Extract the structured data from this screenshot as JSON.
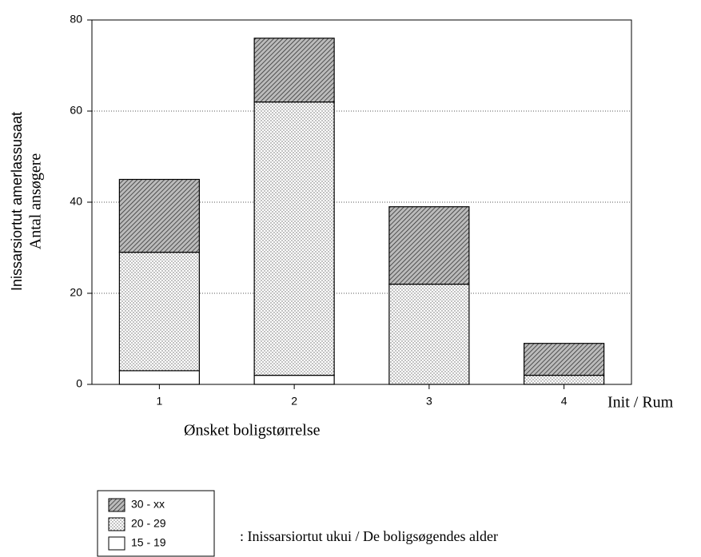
{
  "chart_data": {
    "type": "stacked_bar",
    "y_label": [
      "Inissarsiortut amerlassusaat",
      "Antal ansøgere"
    ],
    "x_label": "Ønsket boligstørrelse",
    "x_unit": "Init / Rum",
    "categories": [
      "1",
      "2",
      "3",
      "4"
    ],
    "series": [
      {
        "name": "15 - 19",
        "color": "#ffffff",
        "pattern": "none",
        "values": [
          3,
          2,
          0,
          0
        ]
      },
      {
        "name": "20 - 29",
        "color": "#ffffff",
        "pattern": "dots",
        "values": [
          26,
          60,
          22,
          2
        ]
      },
      {
        "name": "30 - xx",
        "color": "#ffffff",
        "pattern": "hatch",
        "values": [
          16,
          14,
          17,
          7
        ]
      }
    ],
    "legend_text": ":  Inissarsiortut ukui  / De boligsøgendes alder",
    "ylim": [
      0,
      80
    ],
    "yticks": [
      0,
      20,
      40,
      60,
      80
    ],
    "grid": true
  }
}
